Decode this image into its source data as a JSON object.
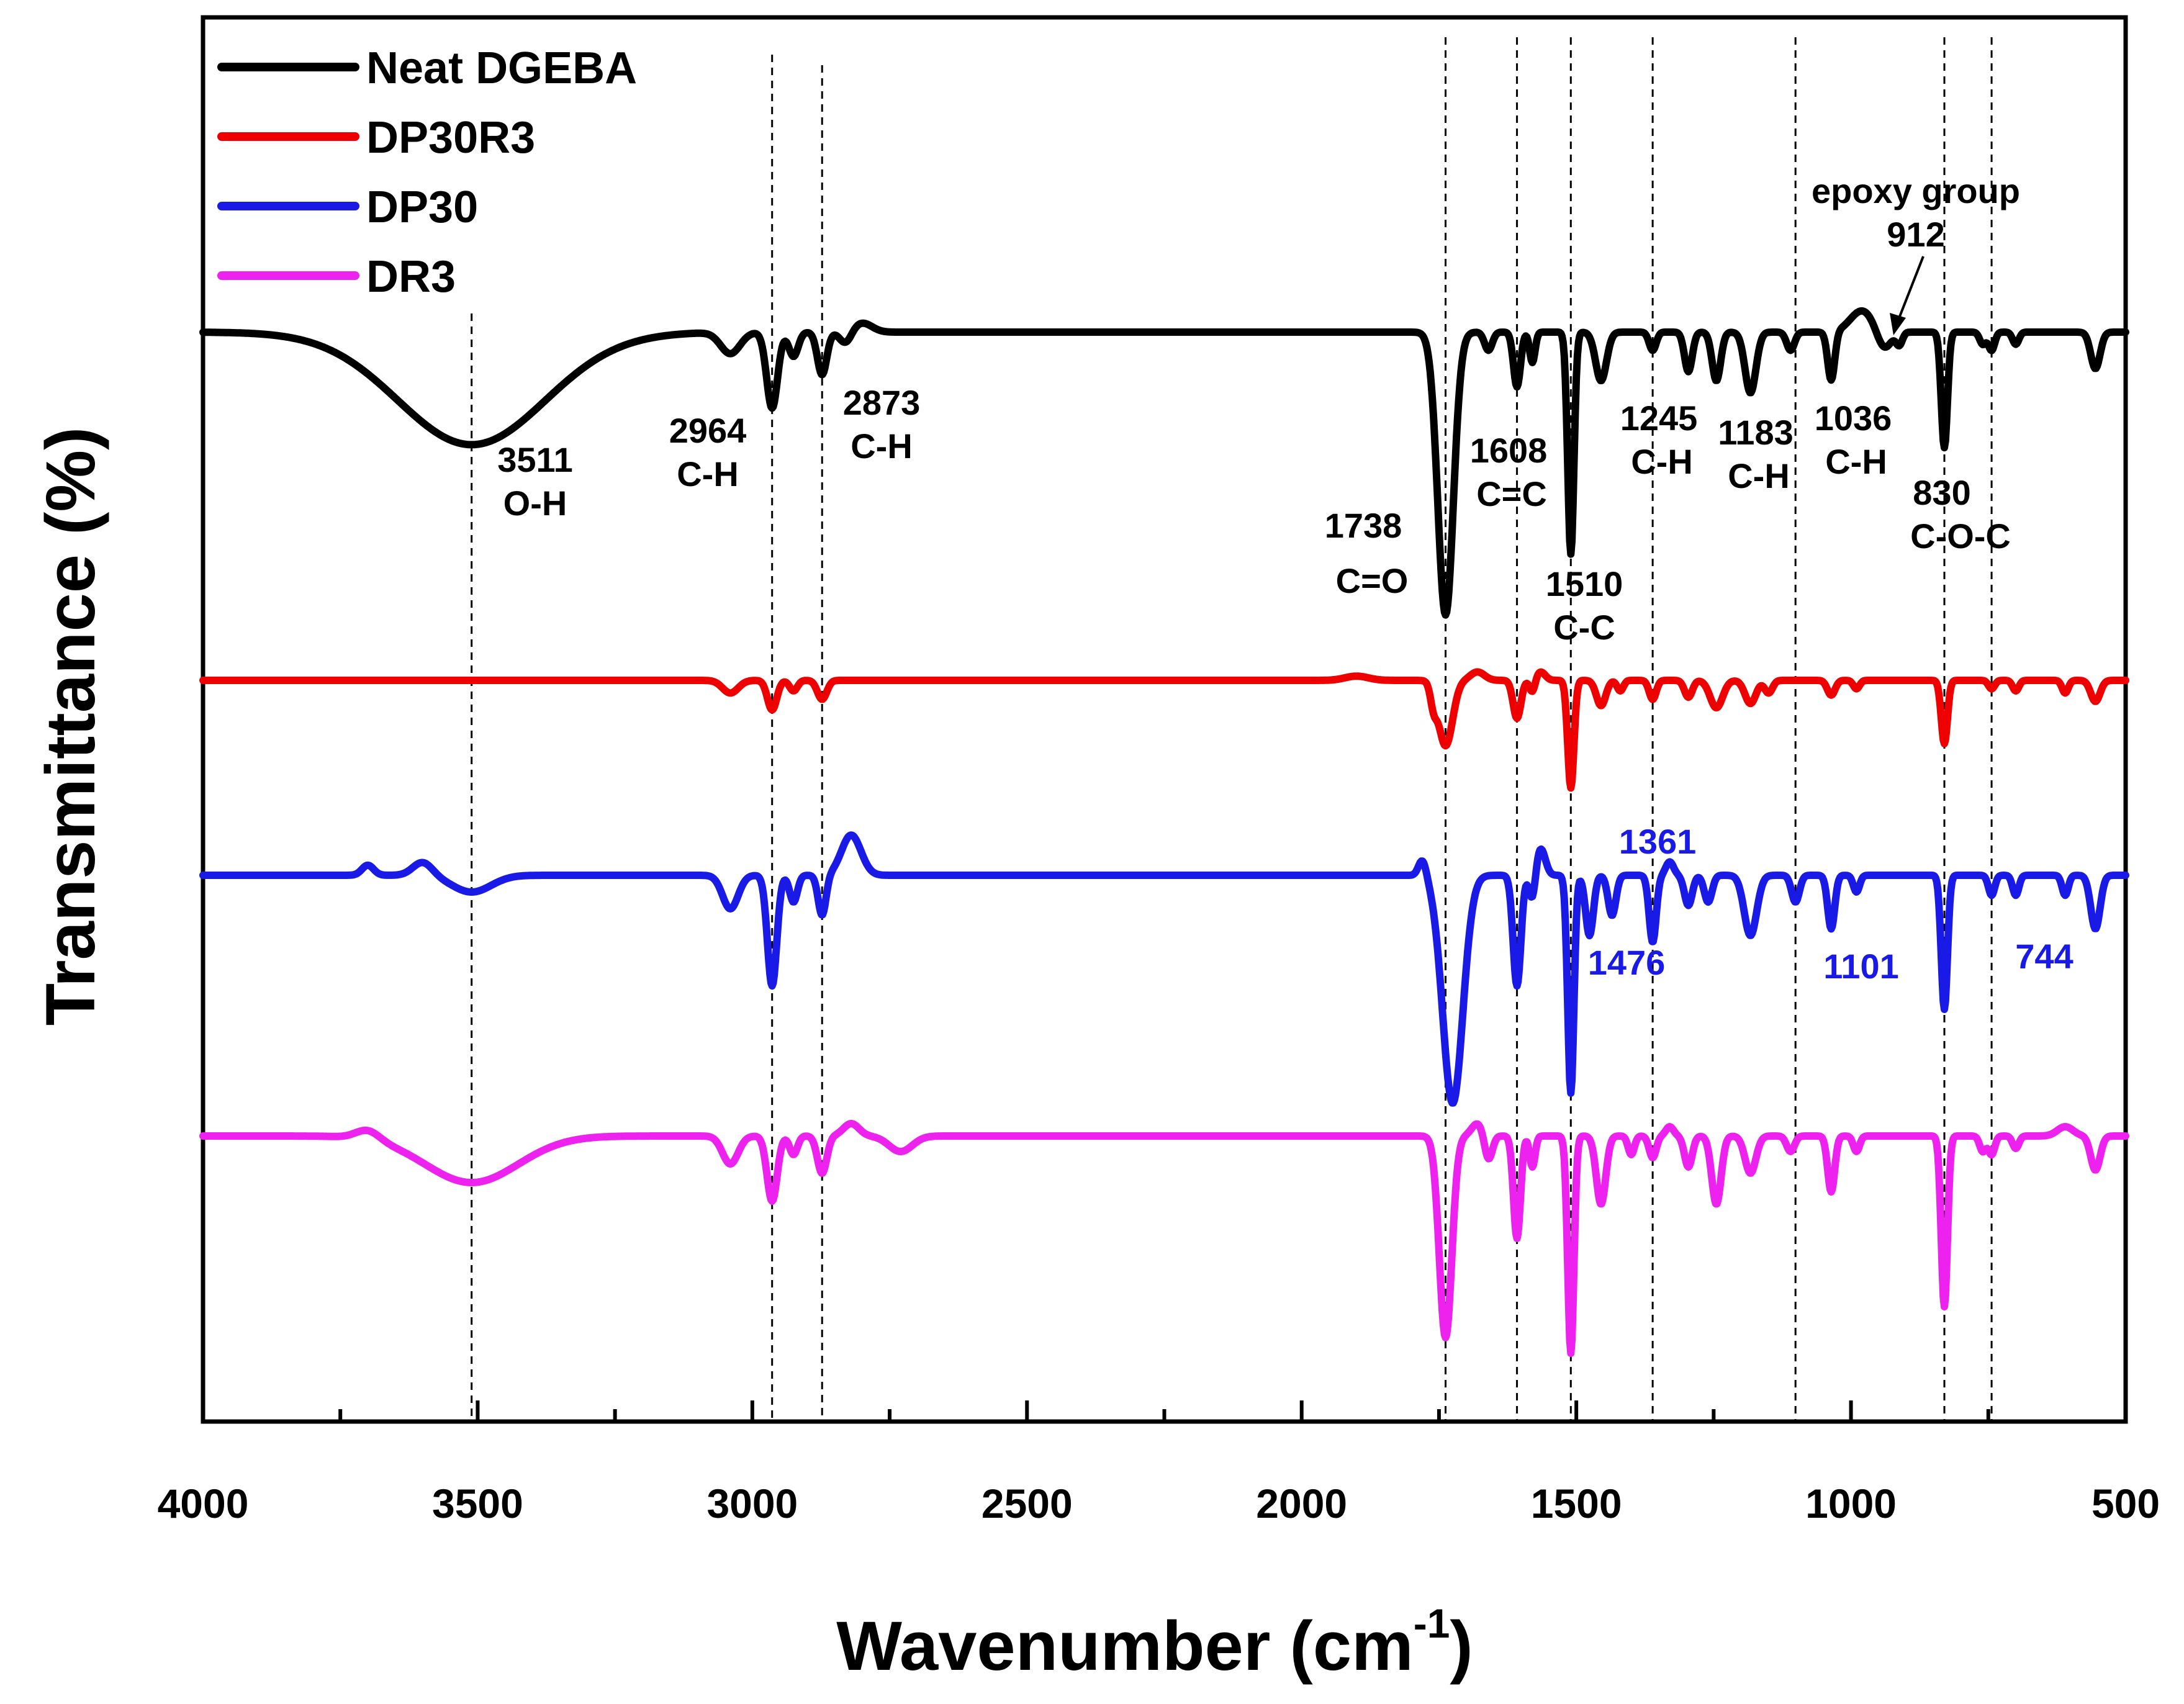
{
  "chart_data": {
    "type": "line",
    "xlabel": "Wavenumber (cm",
    "xlabel_sup": "-1",
    "xlabel_close": ")",
    "ylabel": "Transmittance (%)",
    "xlim": [
      4000,
      500
    ],
    "x_ticks": [
      "4000",
      "3500",
      "3000",
      "2500",
      "2000",
      "1500",
      "1000",
      "500"
    ],
    "x_tick_values": [
      4000,
      3500,
      3000,
      2500,
      2000,
      1500,
      1000,
      500
    ],
    "y_ticks_shown": false,
    "legend_position": "top-left",
    "reference_lines": [
      3511,
      2964,
      2873,
      1738,
      1608,
      1510,
      1361,
      1101,
      830,
      744
    ],
    "series": [
      {
        "name": "Neat DGEBA",
        "color": "#000000",
        "baseline": 100,
        "peaks": [
          [
            3511,
            37,
            190
          ],
          [
            3040,
            7,
            25
          ],
          [
            2964,
            25,
            14
          ],
          [
            2925,
            8,
            12
          ],
          [
            2873,
            14,
            12
          ],
          [
            2830,
            4,
            15
          ],
          [
            1738,
            93,
            20
          ],
          [
            1660,
            6,
            10
          ],
          [
            1608,
            18,
            9
          ],
          [
            1580,
            10,
            7
          ],
          [
            1510,
            73,
            8
          ],
          [
            1455,
            16,
            14
          ],
          [
            1361,
            6,
            9
          ],
          [
            1296,
            13,
            10
          ],
          [
            1245,
            16,
            11
          ],
          [
            1183,
            20,
            14
          ],
          [
            1110,
            6,
            10
          ],
          [
            1036,
            16,
            9
          ],
          [
            940,
            6,
            18
          ],
          [
            912,
            4,
            8
          ],
          [
            830,
            38,
            8
          ],
          [
            760,
            4,
            8
          ],
          [
            744,
            6,
            8
          ],
          [
            700,
            4,
            8
          ],
          [
            555,
            12,
            12
          ]
        ],
        "bumps": [
          [
            980,
            -7,
            30
          ],
          [
            2800,
            -3,
            25
          ]
        ]
      },
      {
        "name": "DP30R3",
        "color": "#ee0000",
        "baseline": 100,
        "peaks": [
          [
            3040,
            6,
            20
          ],
          [
            2964,
            14,
            12
          ],
          [
            2925,
            5,
            10
          ],
          [
            2873,
            9,
            12
          ],
          [
            1760,
            9,
            8
          ],
          [
            1738,
            31,
            18
          ],
          [
            1608,
            18,
            10
          ],
          [
            1580,
            6,
            7
          ],
          [
            1510,
            51,
            8
          ],
          [
            1455,
            12,
            12
          ],
          [
            1420,
            5,
            8
          ],
          [
            1361,
            9,
            9
          ],
          [
            1296,
            8,
            10
          ],
          [
            1245,
            13,
            16
          ],
          [
            1183,
            11,
            14
          ],
          [
            1150,
            6,
            10
          ],
          [
            1036,
            7,
            10
          ],
          [
            990,
            4,
            8
          ],
          [
            830,
            30,
            8
          ],
          [
            744,
            4,
            8
          ],
          [
            700,
            5,
            8
          ],
          [
            610,
            6,
            8
          ],
          [
            555,
            10,
            12
          ]
        ],
        "bumps": [
          [
            1680,
            -4,
            18
          ],
          [
            1565,
            -4,
            12
          ],
          [
            1900,
            -2,
            30
          ]
        ]
      },
      {
        "name": "DP30",
        "color": "#1a1ae6",
        "baseline": 100,
        "peaks": [
          [
            3511,
            5,
            50
          ],
          [
            3040,
            10,
            20
          ],
          [
            2964,
            33,
            12
          ],
          [
            2925,
            8,
            10
          ],
          [
            2873,
            12,
            10
          ],
          [
            1725,
            68,
            26
          ],
          [
            1608,
            33,
            10
          ],
          [
            1580,
            8,
            8
          ],
          [
            1510,
            65,
            8
          ],
          [
            1476,
            18,
            10
          ],
          [
            1435,
            12,
            10
          ],
          [
            1361,
            20,
            9
          ],
          [
            1296,
            9,
            10
          ],
          [
            1260,
            8,
            10
          ],
          [
            1183,
            18,
            16
          ],
          [
            1101,
            8,
            10
          ],
          [
            1036,
            16,
            9
          ],
          [
            990,
            5,
            8
          ],
          [
            830,
            40,
            8
          ],
          [
            744,
            6,
            8
          ],
          [
            700,
            6,
            8
          ],
          [
            610,
            6,
            8
          ],
          [
            555,
            16,
            12
          ]
        ],
        "bumps": [
          [
            2820,
            -12,
            25
          ],
          [
            3600,
            -4,
            25
          ],
          [
            3700,
            -3,
            15
          ],
          [
            1565,
            -8,
            12
          ],
          [
            1780,
            -5,
            10
          ],
          [
            1330,
            -4,
            10
          ]
        ]
      },
      {
        "name": "DR3",
        "color": "#ee22ee",
        "baseline": 100,
        "peaks": [
          [
            3511,
            15,
            120
          ],
          [
            3040,
            9,
            20
          ],
          [
            2964,
            21,
            13
          ],
          [
            2925,
            6,
            10
          ],
          [
            2873,
            12,
            12
          ],
          [
            2730,
            5,
            30
          ],
          [
            1738,
            65,
            16
          ],
          [
            1660,
            8,
            10
          ],
          [
            1608,
            33,
            9
          ],
          [
            1580,
            10,
            7
          ],
          [
            1510,
            70,
            8
          ],
          [
            1455,
            22,
            12
          ],
          [
            1400,
            6,
            8
          ],
          [
            1361,
            7,
            9
          ],
          [
            1296,
            10,
            10
          ],
          [
            1245,
            22,
            12
          ],
          [
            1183,
            12,
            14
          ],
          [
            1110,
            5,
            10
          ],
          [
            1036,
            18,
            9
          ],
          [
            990,
            5,
            8
          ],
          [
            830,
            55,
            8
          ],
          [
            760,
            5,
            8
          ],
          [
            744,
            6,
            8
          ],
          [
            700,
            4,
            8
          ],
          [
            555,
            11,
            12
          ]
        ],
        "bumps": [
          [
            3700,
            -3,
            30
          ],
          [
            2820,
            -4,
            20
          ],
          [
            1680,
            -4,
            15
          ],
          [
            1330,
            -3,
            10
          ],
          [
            610,
            -3,
            20
          ]
        ]
      }
    ],
    "annotations": [
      {
        "text": "3511",
        "sub": "O-H",
        "color": "#000000"
      },
      {
        "text": "2964",
        "sub": "C-H",
        "color": "#000000"
      },
      {
        "text": "2873",
        "sub": "C-H",
        "color": "#000000"
      },
      {
        "text": "1738",
        "sub": "C=O",
        "color": "#000000"
      },
      {
        "text": "1608",
        "sub": "C=C",
        "color": "#000000"
      },
      {
        "text": "1510",
        "sub": "C-C",
        "color": "#000000"
      },
      {
        "text": "1245",
        "sub": "C-H",
        "color": "#000000"
      },
      {
        "text": "1183",
        "sub": "C-H",
        "color": "#000000"
      },
      {
        "text": "1036",
        "sub": "C-H",
        "color": "#000000"
      },
      {
        "text": "830",
        "sub": "C-O-C",
        "color": "#000000"
      },
      {
        "text": "epoxy group",
        "sub": "912",
        "color": "#000000"
      },
      {
        "text": "1361",
        "sub": "",
        "color": "#1a1ae6"
      },
      {
        "text": "1476",
        "sub": "",
        "color": "#1a1ae6"
      },
      {
        "text": "1101",
        "sub": "",
        "color": "#1a1ae6"
      },
      {
        "text": "744",
        "sub": "",
        "color": "#1a1ae6"
      }
    ]
  }
}
